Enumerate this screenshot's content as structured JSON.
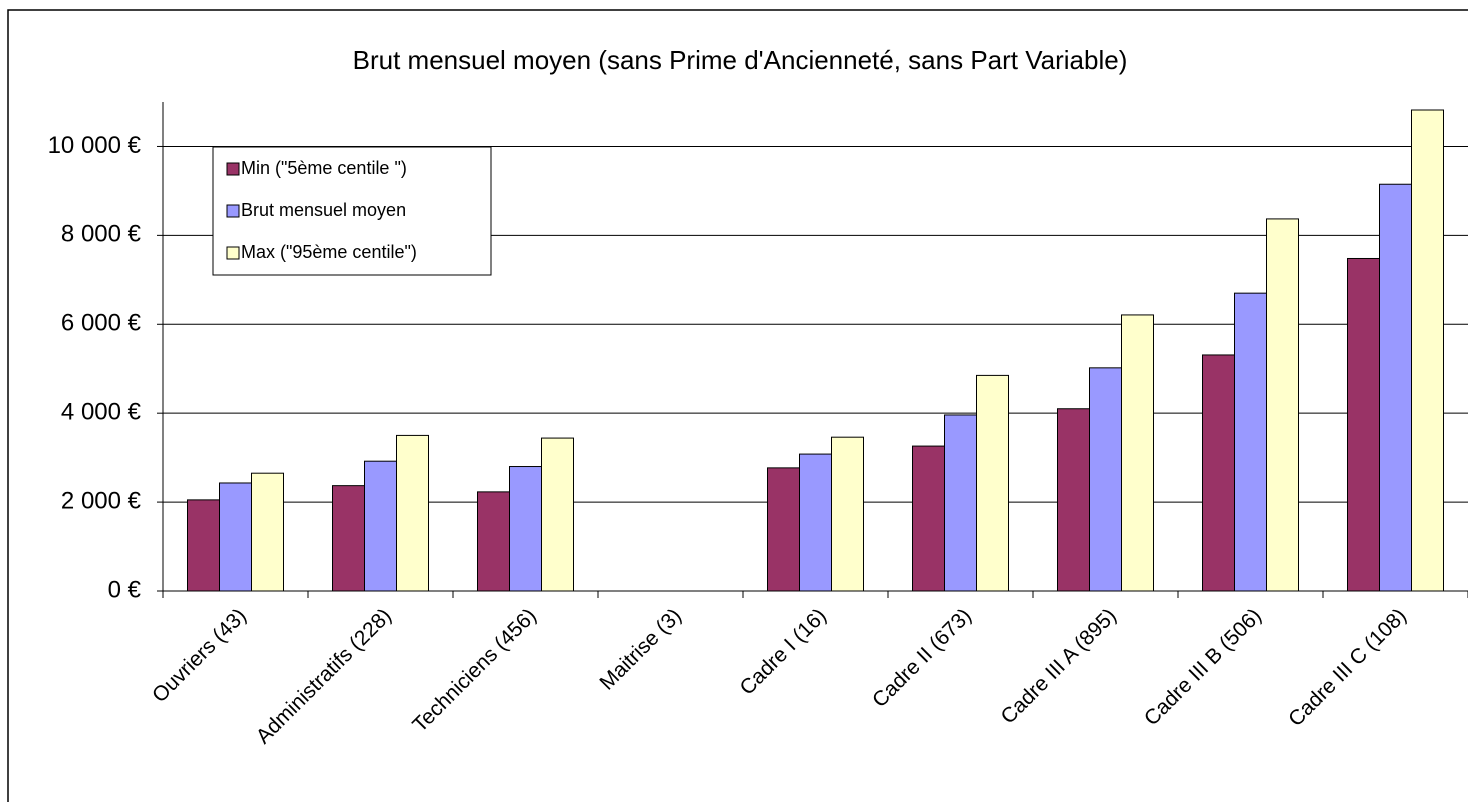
{
  "chart_data": {
    "type": "bar",
    "title": "Brut mensuel moyen (sans Prime d'Ancienneté, sans Part Variable)",
    "categories": [
      "Ouvriers  (43)",
      "Administratifs (228)",
      "Techniciens (456)",
      "Maitrise (3)",
      "Cadre I (16)",
      "Cadre II (673)",
      "Cadre III A (895)",
      "Cadre III B (506)",
      "Cadre III C (108)"
    ],
    "series": [
      {
        "name": "Min (\"5ème centile \")",
        "color": "#993366",
        "values": [
          2050,
          2370,
          2230,
          null,
          2770,
          3260,
          4100,
          5310,
          7480
        ]
      },
      {
        "name": "Brut mensuel moyen",
        "color": "#9999ff",
        "values": [
          2430,
          2920,
          2800,
          null,
          3080,
          3960,
          5020,
          6700,
          9150
        ]
      },
      {
        "name": "Max (\"95ème centile\")",
        "color": "#ffffcc",
        "values": [
          2650,
          3500,
          3440,
          null,
          3460,
          4850,
          6210,
          8370,
          10820
        ]
      }
    ],
    "ylim": [
      0,
      11000
    ],
    "yticks": [
      {
        "value": 0,
        "label": "0 €"
      },
      {
        "value": 2000,
        "label": "2 000 €"
      },
      {
        "value": 4000,
        "label": "4 000 €"
      },
      {
        "value": 6000,
        "label": "6 000 €"
      },
      {
        "value": 8000,
        "label": "8 000 €"
      },
      {
        "value": 10000,
        "label": "10 000 €"
      }
    ],
    "grid": true,
    "legend": "top-left"
  }
}
